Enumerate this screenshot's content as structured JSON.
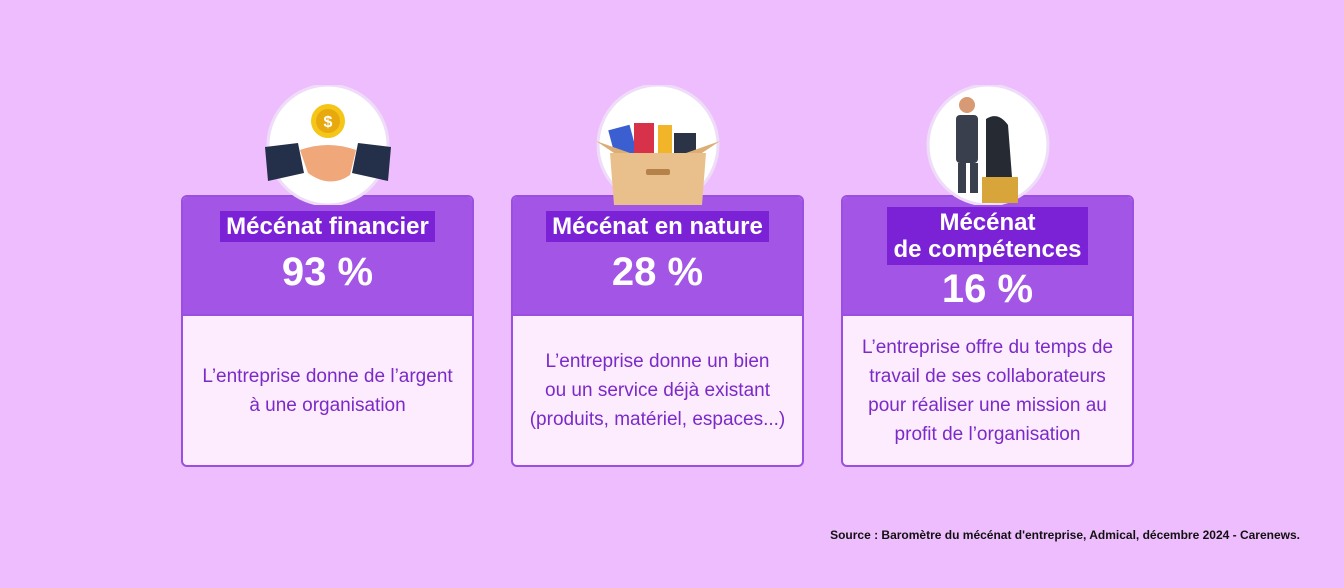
{
  "cards": [
    {
      "title": [
        "Mécénat financier"
      ],
      "value": "93 %",
      "description": [
        "L’entreprise donne de l’argent",
        "à une organisation"
      ]
    },
    {
      "title": [
        "Mécénat en nature"
      ],
      "value": "28 %",
      "description": [
        "L’entreprise donne un bien",
        "ou un service déjà existant",
        "(produits, matériel, espaces...)"
      ]
    },
    {
      "title": [
        "Mécénat",
        "de compétences"
      ],
      "value": "16 %",
      "description": [
        "L’entreprise offre du temps de",
        "travail de ses collaborateurs",
        "pour réaliser une mission au",
        "profit de l’organisation"
      ]
    }
  ],
  "source": "Source : Baromètre du mécénat d'entreprise, Admical, décembre 2024 - Carenews."
}
